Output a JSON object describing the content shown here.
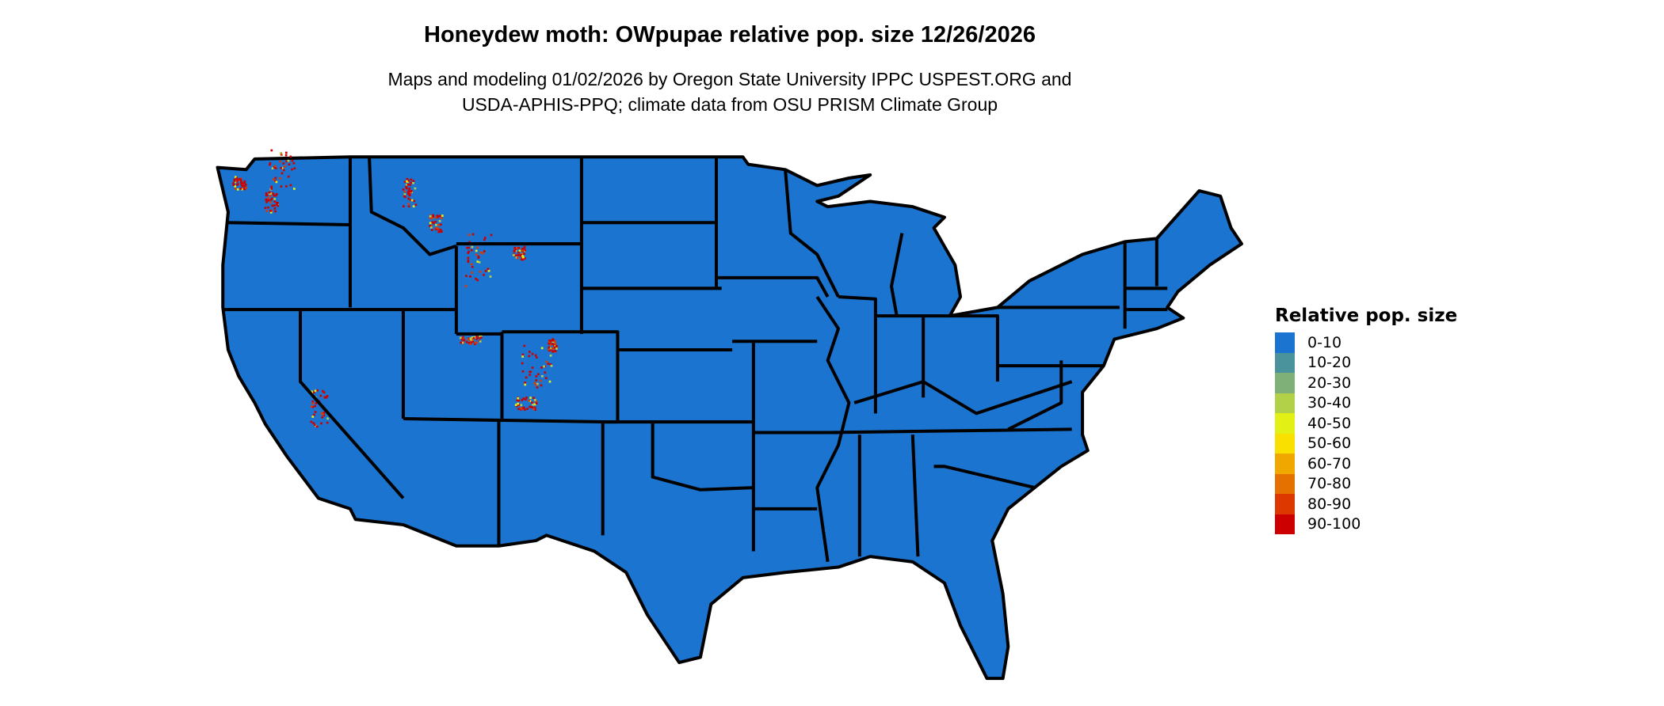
{
  "title": "Honeydew moth: OWpupae relative pop. size 12/26/2026",
  "subtitle_line1": "Maps and modeling 01/02/2026 by Oregon State University IPPC USPEST.ORG and",
  "subtitle_line2": "USDA-APHIS-PPQ; climate data from OSU PRISM Climate Group",
  "map": {
    "region": "Contiguous United States",
    "base_color": "#1B75D0",
    "border_color": "#000000"
  },
  "legend": {
    "title": "Relative pop. size",
    "items": [
      {
        "label": "0-10",
        "color": "#1B75D0"
      },
      {
        "label": "10-20",
        "color": "#4A929C"
      },
      {
        "label": "20-30",
        "color": "#7EB077"
      },
      {
        "label": "30-40",
        "color": "#B2D148"
      },
      {
        "label": "40-50",
        "color": "#E3F016"
      },
      {
        "label": "50-60",
        "color": "#F9E000"
      },
      {
        "label": "60-70",
        "color": "#F0A800"
      },
      {
        "label": "70-80",
        "color": "#E57100"
      },
      {
        "label": "80-90",
        "color": "#DC3800"
      },
      {
        "label": "90-100",
        "color": "#CC0000"
      }
    ]
  }
}
